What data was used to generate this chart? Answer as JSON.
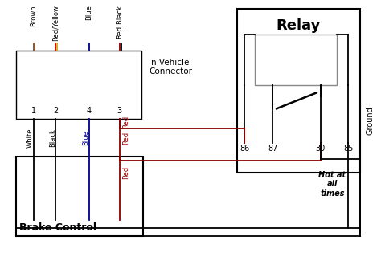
{
  "bg": "#ffffff",
  "lw": 1.3,
  "brown_color": "#8B4513",
  "redyel_color1": "#CC0000",
  "redyel_color2": "#DAA520",
  "blue_color": "#00008B",
  "red_color": "#8B0000",
  "black_color": "#000000",
  "relay_title": "Relay",
  "brake_control_title": "Brake Control",
  "in_vehicle_text": "In Vehicle\nConnector",
  "hot_text": "Hot at\nall\ntimes",
  "ground_text": "Ground",
  "pin_labels": [
    "1",
    "2",
    "4",
    "3"
  ],
  "relay_pins": [
    "86",
    "87",
    "30",
    "85"
  ]
}
